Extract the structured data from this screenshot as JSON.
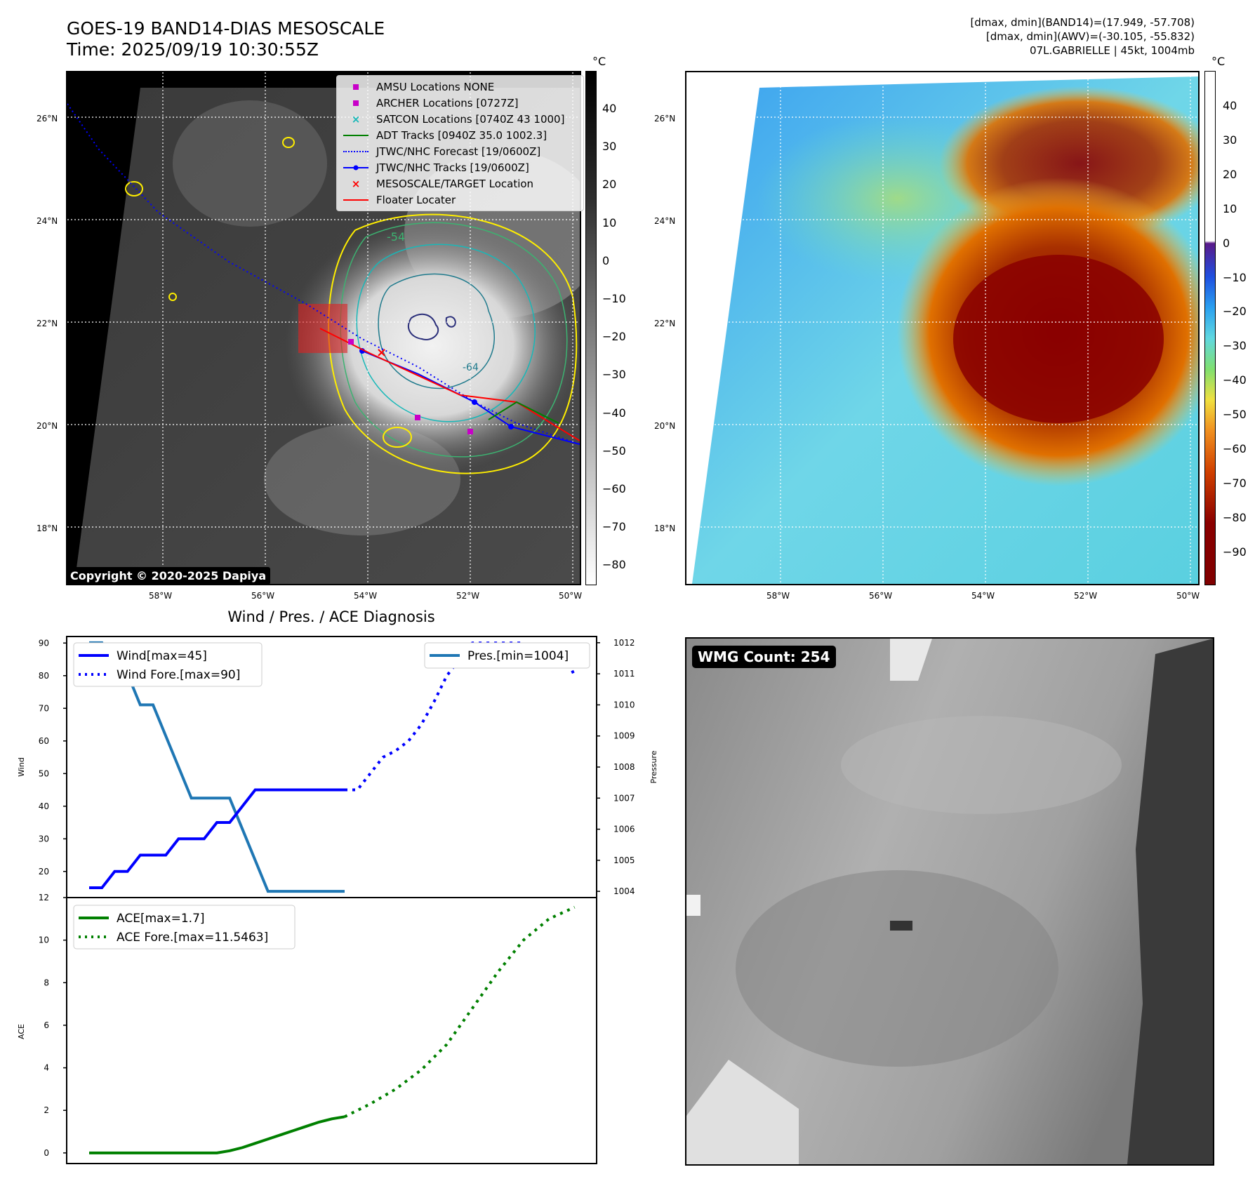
{
  "header": {
    "title_line1": "GOES-19 BAND14-DIAS MESOSCALE",
    "title_line2": "Time: 2025/09/19 10:30:55Z",
    "info_line1": "[dmax, dmin](BAND14)=(17.949, -57.708)",
    "info_line2": "[dmax, dmin](AWV)=(-30.105, -55.832)",
    "info_line3": "07L.GABRIELLE | 45kt, 1004mb"
  },
  "map": {
    "lat_labels": [
      "26°N",
      "24°N",
      "22°N",
      "20°N",
      "18°N"
    ],
    "lon_labels": [
      "58°W",
      "56°W",
      "54°W",
      "52°W",
      "50°W"
    ],
    "unit": "°C",
    "colorbar_left_ticks": [
      "40",
      "30",
      "20",
      "10",
      "0",
      "−10",
      "−20",
      "−30",
      "−40",
      "−50",
      "−60",
      "−70",
      "−80"
    ],
    "colorbar_right_ticks": [
      "40",
      "30",
      "20",
      "10",
      "0",
      "−10",
      "−20",
      "−30",
      "−40",
      "−50",
      "−60",
      "−70",
      "−80",
      "−90"
    ],
    "contour_labels": [
      "-54",
      "-64"
    ],
    "copyright": "Copyright © 2020-2025 Dapiya",
    "legend": [
      {
        "label": "AMSU Locations NONE",
        "color": "#c800c8",
        "symbol": "square"
      },
      {
        "label": "ARCHER Locations [0727Z]",
        "color": "#c800c8",
        "symbol": "square"
      },
      {
        "label": "SATCON Locations [0740Z 43 1000]",
        "color": "#17b8b8",
        "symbol": "x"
      },
      {
        "label": "ADT Tracks [0940Z 35.0 1002.3]",
        "color": "#008000",
        "symbol": "line"
      },
      {
        "label": "JTWC/NHC Forecast [19/0600Z]",
        "color": "#0000ff",
        "symbol": "dotted"
      },
      {
        "label": "JTWC/NHC Tracks [19/0600Z]",
        "color": "#0000ff",
        "symbol": "line-dot"
      },
      {
        "label": "MESOSCALE/TARGET Location",
        "color": "#ff0000",
        "symbol": "x"
      },
      {
        "label": "Floater Locater",
        "color": "#ff0000",
        "symbol": "line"
      }
    ],
    "wmg_label": "WMG Count: 254"
  },
  "chart_data": [
    {
      "type": "line",
      "title": "Wind / Pres. / ACE Diagnosis",
      "ylabel": "Wind",
      "ylim": [
        12,
        92
      ],
      "y_ticks": [
        20,
        30,
        40,
        50,
        60,
        70,
        80,
        90
      ],
      "x": [
        0,
        1,
        2,
        3,
        4,
        5,
        6,
        7,
        8,
        9,
        10,
        11,
        12,
        13,
        14,
        15,
        16,
        17,
        18,
        19,
        20
      ],
      "series": [
        {
          "name": "Wind[max=45]",
          "color": "#0000ff",
          "style": "solid",
          "values": [
            15,
            15,
            20,
            20,
            25,
            25,
            25,
            30,
            30,
            30,
            35,
            35,
            40,
            45,
            45,
            45,
            45,
            45,
            45,
            45,
            45
          ]
        },
        {
          "name": "Wind Fore.[max=90]",
          "color": "#0000ff",
          "style": "dotted",
          "x": [
            20,
            21,
            22,
            23,
            24,
            25,
            26,
            27,
            28,
            29,
            30,
            31,
            32,
            33,
            34,
            35,
            36,
            37,
            38
          ],
          "values": [
            45,
            45,
            50,
            55,
            57,
            60,
            65,
            72,
            80,
            85,
            90,
            90,
            90,
            90,
            90,
            88,
            88,
            88,
            80
          ]
        }
      ]
    },
    {
      "type": "line",
      "ylabel": "Pressure",
      "ylim": [
        1003.8,
        1012.2
      ],
      "y_ticks": [
        1004,
        1005,
        1006,
        1007,
        1008,
        1009,
        1010,
        1011,
        1012
      ],
      "series": [
        {
          "name": "Pres.[min=1004]",
          "color": "#1f77b4",
          "style": "solid",
          "x": [
            0,
            1,
            2,
            3,
            4,
            5,
            6,
            7,
            8,
            9,
            10,
            11,
            12,
            13,
            14,
            15,
            16,
            17,
            18,
            19,
            20
          ],
          "values": [
            1012,
            1012,
            1011,
            1011,
            1010,
            1010,
            1009,
            1008,
            1007,
            1007,
            1007,
            1007,
            1006,
            1005,
            1004,
            1004,
            1004,
            1004,
            1004,
            1004,
            1004
          ]
        }
      ]
    },
    {
      "type": "line",
      "ylabel": "ACE",
      "ylim": [
        -0.5,
        12
      ],
      "y_ticks": [
        0,
        2,
        4,
        6,
        8,
        10,
        12
      ],
      "series": [
        {
          "name": "ACE[max=1.7]",
          "color": "#008000",
          "style": "solid",
          "x": [
            0,
            2,
            4,
            6,
            8,
            10,
            11,
            12,
            13,
            14,
            15,
            16,
            17,
            18,
            19,
            20
          ],
          "values": [
            0,
            0,
            0,
            0,
            0,
            0,
            0.1,
            0.25,
            0.45,
            0.65,
            0.85,
            1.05,
            1.25,
            1.45,
            1.6,
            1.7
          ]
        },
        {
          "name": "ACE Fore.[max=11.5463]",
          "color": "#008000",
          "style": "dotted",
          "x": [
            20,
            22,
            24,
            26,
            28,
            30,
            32,
            34,
            36,
            38
          ],
          "values": [
            1.7,
            2.3,
            3.0,
            3.9,
            5.1,
            6.8,
            8.5,
            10.0,
            11.0,
            11.5463
          ]
        }
      ]
    }
  ]
}
